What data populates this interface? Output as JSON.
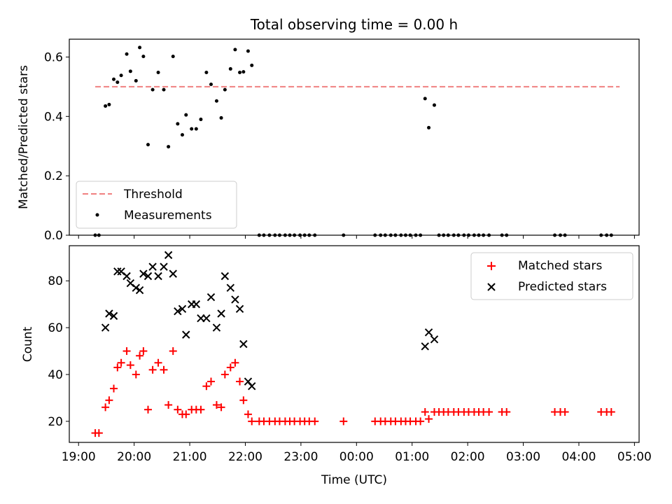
{
  "chart_data": [
    {
      "type": "scatter",
      "title": "Total observing time = 0.00 h",
      "xlabel": "",
      "ylabel": "Matched/Predicted stars",
      "xlim": [
        "18:50",
        "05:05"
      ],
      "ylim": [
        0,
        0.66
      ],
      "x_ticks": [
        "19:00",
        "20:00",
        "21:00",
        "22:00",
        "23:00",
        "00:00",
        "01:00",
        "02:00",
        "03:00",
        "04:00",
        "05:00"
      ],
      "y_ticks": [
        "0.0",
        "0.2",
        "0.4",
        "0.6"
      ],
      "threshold": {
        "name": "Threshold",
        "value": 0.5,
        "x_range": [
          "19:18",
          "04:44"
        ],
        "color": "#f08080"
      },
      "series": [
        {
          "name": "Measurements",
          "color": "#000000",
          "x": [
            "19:18",
            "19:22",
            "19:29",
            "19:33",
            "19:38",
            "19:42",
            "19:46",
            "19:52",
            "19:56",
            "20:02",
            "20:06",
            "20:10",
            "20:15",
            "20:20",
            "20:26",
            "20:32",
            "20:37",
            "20:42",
            "20:47",
            "20:52",
            "20:56",
            "21:02",
            "21:07",
            "21:12",
            "21:18",
            "21:23",
            "21:29",
            "21:34",
            "21:38",
            "21:44",
            "21:49",
            "21:54",
            "21:58",
            "22:03",
            "22:07",
            "22:15",
            "22:20",
            "22:26",
            "22:32",
            "22:37",
            "22:43",
            "22:48",
            "22:53",
            "22:59",
            "23:04",
            "23:09",
            "23:15",
            "23:46",
            "00:20",
            "00:26",
            "00:31",
            "00:37",
            "00:42",
            "00:48",
            "00:53",
            "00:58",
            "01:04",
            "01:09",
            "01:14",
            "01:18",
            "01:24",
            "01:29",
            "01:34",
            "01:39",
            "01:45",
            "01:50",
            "01:56",
            "02:01",
            "02:07",
            "02:12",
            "02:17",
            "02:23",
            "02:37",
            "02:42",
            "03:34",
            "03:40",
            "03:45",
            "04:24",
            "04:30",
            "04:35"
          ],
          "y": [
            0.0,
            0.0,
            0.435,
            0.44,
            0.525,
            0.515,
            0.538,
            0.61,
            0.552,
            0.52,
            0.632,
            0.602,
            0.305,
            0.49,
            0.548,
            0.49,
            0.298,
            0.602,
            0.375,
            0.338,
            0.405,
            0.358,
            0.358,
            0.39,
            0.548,
            0.508,
            0.452,
            0.395,
            0.49,
            0.56,
            0.625,
            0.548,
            0.55,
            0.62,
            0.572,
            0.0,
            0.0,
            0.0,
            0.0,
            0.0,
            0.0,
            0.0,
            0.0,
            0.0,
            0.0,
            0.0,
            0.0,
            0.0,
            0.0,
            0.0,
            0.0,
            0.0,
            0.0,
            0.0,
            0.0,
            0.0,
            0.0,
            0.0,
            0.46,
            0.362,
            0.438,
            0.0,
            0.0,
            0.0,
            0.0,
            0.0,
            0.0,
            0.0,
            0.0,
            0.0,
            0.0,
            0.0,
            0.0,
            0.0,
            0.0,
            0.0,
            0.0,
            0.0,
            0.0,
            0.0
          ]
        }
      ],
      "legend": {
        "placement": "lower-left",
        "entries": [
          "Threshold",
          "Measurements"
        ]
      }
    },
    {
      "type": "scatter",
      "title": "",
      "xlabel": "Time (UTC)",
      "ylabel": "Count",
      "xlim": [
        "18:50",
        "05:05"
      ],
      "ylim": [
        11,
        95
      ],
      "x_ticks": [
        "19:00",
        "20:00",
        "21:00",
        "22:00",
        "23:00",
        "00:00",
        "01:00",
        "02:00",
        "03:00",
        "04:00",
        "05:00"
      ],
      "y_ticks": [
        "20",
        "40",
        "60",
        "80"
      ],
      "series": [
        {
          "name": "Matched stars",
          "marker": "plus",
          "color": "#ff0000",
          "x": [
            "19:18",
            "19:22",
            "19:29",
            "19:33",
            "19:38",
            "19:42",
            "19:46",
            "19:52",
            "19:56",
            "20:02",
            "20:06",
            "20:10",
            "20:15",
            "20:20",
            "20:26",
            "20:32",
            "20:37",
            "20:42",
            "20:47",
            "20:52",
            "20:56",
            "21:02",
            "21:07",
            "21:12",
            "21:18",
            "21:23",
            "21:29",
            "21:34",
            "21:38",
            "21:44",
            "21:49",
            "21:54",
            "21:58",
            "22:03",
            "22:07",
            "22:15",
            "22:20",
            "22:26",
            "22:32",
            "22:37",
            "22:43",
            "22:48",
            "22:53",
            "22:59",
            "23:04",
            "23:09",
            "23:15",
            "23:46",
            "00:20",
            "00:26",
            "00:31",
            "00:37",
            "00:42",
            "00:48",
            "00:53",
            "00:58",
            "01:04",
            "01:09",
            "01:14",
            "01:18",
            "01:24",
            "01:29",
            "01:34",
            "01:39",
            "01:45",
            "01:50",
            "01:56",
            "02:01",
            "02:07",
            "02:12",
            "02:17",
            "02:23",
            "02:37",
            "02:42",
            "03:34",
            "03:40",
            "03:45",
            "04:24",
            "04:30",
            "04:35"
          ],
          "y": [
            15,
            15,
            26,
            29,
            34,
            43,
            45,
            50,
            44,
            40,
            48,
            50,
            25,
            42,
            45,
            42,
            27,
            50,
            25,
            23,
            23,
            25,
            25,
            25,
            35,
            37,
            27,
            26,
            40,
            43,
            45,
            37,
            29,
            23,
            20,
            20,
            20,
            20,
            20,
            20,
            20,
            20,
            20,
            20,
            20,
            20,
            20,
            20,
            20,
            20,
            20,
            20,
            20,
            20,
            20,
            20,
            20,
            20,
            24,
            21,
            24,
            24,
            24,
            24,
            24,
            24,
            24,
            24,
            24,
            24,
            24,
            24,
            24,
            24,
            24,
            24,
            24,
            24,
            24,
            24
          ]
        },
        {
          "name": "Predicted stars",
          "marker": "x",
          "color": "#000000",
          "x": [
            "19:29",
            "19:33",
            "19:38",
            "19:42",
            "19:46",
            "19:52",
            "19:56",
            "20:02",
            "20:06",
            "20:10",
            "20:15",
            "20:20",
            "20:26",
            "20:32",
            "20:37",
            "20:42",
            "20:47",
            "20:52",
            "20:56",
            "21:02",
            "21:07",
            "21:12",
            "21:18",
            "21:23",
            "21:29",
            "21:34",
            "21:38",
            "21:44",
            "21:49",
            "21:54",
            "21:58",
            "22:03",
            "22:07",
            "01:14",
            "01:18",
            "01:24"
          ],
          "y": [
            60,
            66,
            65,
            84,
            84,
            82,
            79,
            77,
            76,
            83,
            82,
            86,
            82,
            86,
            91,
            83,
            67,
            68,
            57,
            70,
            70,
            64,
            64,
            73,
            60,
            66,
            82,
            77,
            72,
            68,
            53,
            37,
            35,
            52,
            58,
            55
          ]
        }
      ],
      "legend": {
        "placement": "upper-right",
        "entries": [
          "Matched stars",
          "Predicted stars"
        ]
      }
    }
  ]
}
